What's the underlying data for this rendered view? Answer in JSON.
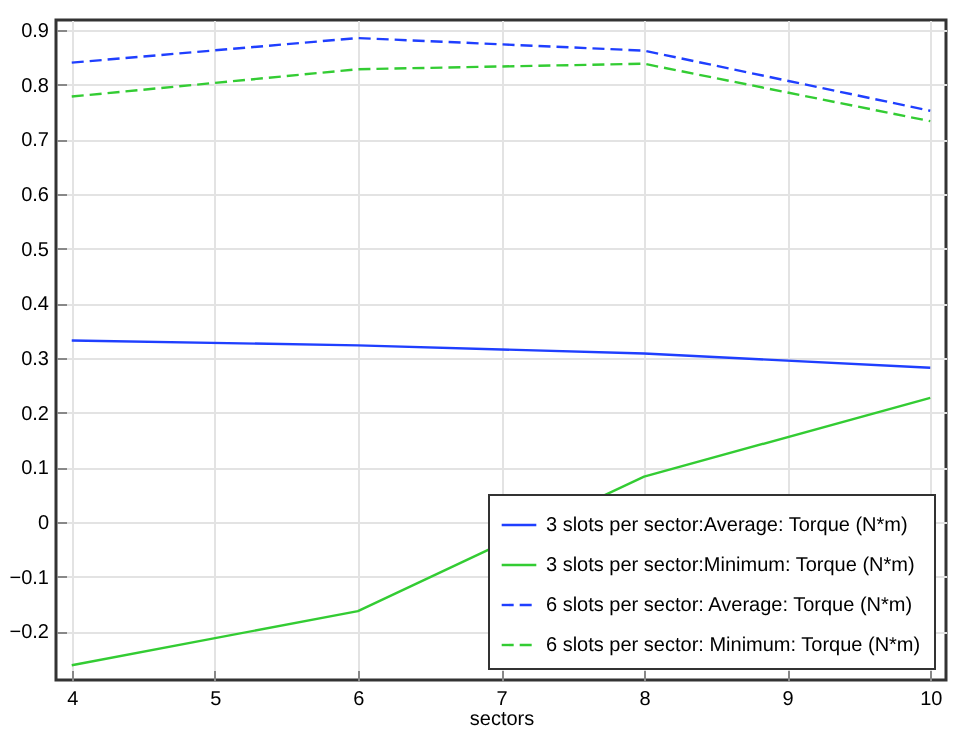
{
  "chart_data": {
    "type": "line",
    "xlabel": "sectors",
    "xlim": [
      3.89,
      10.11
    ],
    "xticks": [
      4,
      5,
      6,
      7,
      8,
      9,
      10
    ],
    "ylim": [
      -0.289,
      0.918
    ],
    "yticks": [
      -0.2,
      -0.1,
      0,
      0.1,
      0.2,
      0.3,
      0.4,
      0.5,
      0.6,
      0.7,
      0.8,
      0.9
    ],
    "grid": true,
    "legend": "bottom right",
    "marker": "none",
    "series": [
      {
        "name": "3 slots per sector:Average: Torque (N*m)",
        "color": "#1f3fff",
        "line_style": "solid",
        "x": [
          4,
          6,
          8,
          10
        ],
        "values": [
          0.332,
          0.323,
          0.308,
          0.282
        ]
      },
      {
        "name": "3 slots per sector:Minimum: Torque (N*m)",
        "color": "#33cc33",
        "line_style": "solid",
        "x": [
          4,
          6,
          8,
          10
        ],
        "values": [
          -0.262,
          -0.163,
          0.083,
          0.227
        ]
      },
      {
        "name": "6 slots per sector: Average: Torque (N*m)",
        "color": "#1f3fff",
        "line_style": "dashed",
        "x": [
          4,
          6,
          8,
          10
        ],
        "values": [
          0.84,
          0.885,
          0.862,
          0.752
        ]
      },
      {
        "name": "6 slots per sector: Minimum: Torque (N*m)",
        "color": "#33cc33",
        "line_style": "dashed",
        "x": [
          4,
          6,
          8,
          10
        ],
        "values": [
          0.778,
          0.828,
          0.838,
          0.733
        ]
      }
    ]
  }
}
